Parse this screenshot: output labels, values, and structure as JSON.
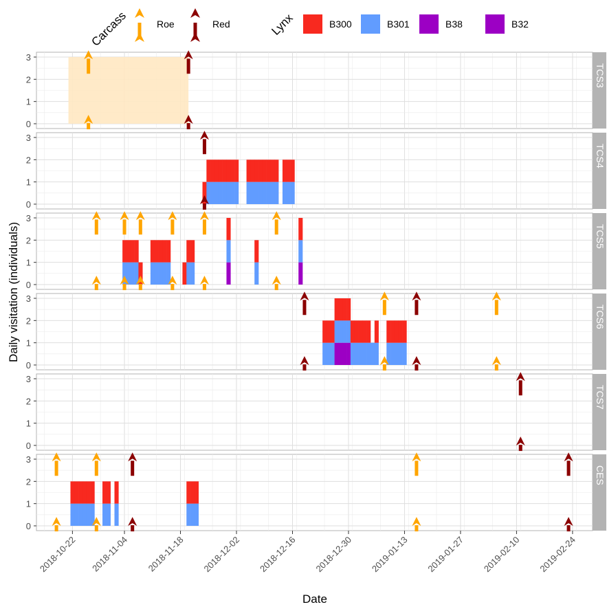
{
  "chart_data": {
    "type": "bar",
    "xlabel": "Date",
    "ylabel": "Daily visitation (individuals)",
    "x_ticks": [
      "2018-10-22",
      "2018-11-04",
      "2018-11-18",
      "2018-12-02",
      "2018-12-16",
      "2018-12-30",
      "2019-01-13",
      "2019-01-27",
      "2019-02-10",
      "2019-02-24"
    ],
    "x_range": [
      "2018-10-13",
      "2019-03-01"
    ],
    "y_ticks": [
      0,
      1,
      2,
      3
    ],
    "ylim": [
      0,
      3
    ],
    "grid": true,
    "legend": {
      "carcass_title": "Carcass",
      "carcass_items": [
        {
          "label": "Roe",
          "color": "#FFA500"
        },
        {
          "label": "Red",
          "color": "#8B0000"
        }
      ],
      "lynx_title": "Lynx",
      "lynx_items": [
        {
          "label": "B300",
          "color": "#F8291F"
        },
        {
          "label": "B301",
          "color": "#619CFF"
        },
        {
          "label": "B38",
          "color": "#9C00C4"
        },
        {
          "label": "B32",
          "color": "#9C00C4"
        }
      ],
      "placement": "top"
    },
    "panels": [
      {
        "name": "TCS3",
        "carcass_periods": [
          {
            "start": "2018-10-21",
            "end": "2018-11-20",
            "color": "#FFE8C2"
          }
        ],
        "carcasses": [
          {
            "date": "2018-10-26",
            "type": "Roe"
          },
          {
            "date": "2018-11-20",
            "type": "Red"
          }
        ],
        "visits": []
      },
      {
        "name": "TCS4",
        "carcass_periods": [],
        "carcasses": [
          {
            "date": "2018-11-24",
            "type": "Red"
          }
        ],
        "visits": [
          {
            "date": "2018-11-24",
            "B300": 1,
            "B301": 0
          },
          {
            "date": "2018-11-25",
            "B300": 1,
            "B301": 1
          },
          {
            "date": "2018-11-26",
            "B300": 1,
            "B301": 1
          },
          {
            "date": "2018-11-27",
            "B300": 1,
            "B301": 1
          },
          {
            "date": "2018-11-28",
            "B300": 1,
            "B301": 1
          },
          {
            "date": "2018-11-29",
            "B300": 1,
            "B301": 1
          },
          {
            "date": "2018-11-30",
            "B300": 1,
            "B301": 1
          },
          {
            "date": "2018-12-01",
            "B300": 1,
            "B301": 1
          },
          {
            "date": "2018-12-02",
            "B300": 1,
            "B301": 1
          },
          {
            "date": "2018-12-05",
            "B300": 1,
            "B301": 1
          },
          {
            "date": "2018-12-06",
            "B300": 1,
            "B301": 1
          },
          {
            "date": "2018-12-07",
            "B300": 1,
            "B301": 1
          },
          {
            "date": "2018-12-08",
            "B300": 1,
            "B301": 1
          },
          {
            "date": "2018-12-09",
            "B300": 1,
            "B301": 1
          },
          {
            "date": "2018-12-10",
            "B300": 1,
            "B301": 1
          },
          {
            "date": "2018-12-11",
            "B300": 1,
            "B301": 1
          },
          {
            "date": "2018-12-12",
            "B300": 1,
            "B301": 1
          },
          {
            "date": "2018-12-14",
            "B300": 1,
            "B301": 1
          },
          {
            "date": "2018-12-15",
            "B300": 1,
            "B301": 1
          },
          {
            "date": "2018-12-16",
            "B300": 1,
            "B301": 1
          }
        ]
      },
      {
        "name": "TCS5",
        "carcass_periods": [],
        "carcasses": [
          {
            "date": "2018-10-28",
            "type": "Roe"
          },
          {
            "date": "2018-11-04",
            "type": "Roe"
          },
          {
            "date": "2018-11-08",
            "type": "Roe"
          },
          {
            "date": "2018-11-16",
            "type": "Roe"
          },
          {
            "date": "2018-11-24",
            "type": "Roe"
          },
          {
            "date": "2018-12-12",
            "type": "Roe"
          }
        ],
        "visits": [
          {
            "date": "2018-11-04",
            "B300": 1,
            "B301": 1
          },
          {
            "date": "2018-11-05",
            "B300": 1,
            "B301": 1
          },
          {
            "date": "2018-11-06",
            "B300": 1,
            "B301": 1
          },
          {
            "date": "2018-11-07",
            "B300": 1,
            "B301": 1
          },
          {
            "date": "2018-11-08",
            "B300": 1,
            "B301": 0
          },
          {
            "date": "2018-11-11",
            "B300": 1,
            "B301": 1
          },
          {
            "date": "2018-11-12",
            "B300": 1,
            "B301": 1
          },
          {
            "date": "2018-11-13",
            "B300": 1,
            "B301": 1
          },
          {
            "date": "2018-11-14",
            "B300": 1,
            "B301": 1
          },
          {
            "date": "2018-11-15",
            "B300": 1,
            "B301": 1
          },
          {
            "date": "2018-11-19",
            "B300": 1,
            "B301": 0
          },
          {
            "date": "2018-11-20",
            "B300": 1,
            "B301": 1
          },
          {
            "date": "2018-11-21",
            "B300": 1,
            "B301": 1
          },
          {
            "date": "2018-11-30",
            "B300": 1,
            "B301": 1,
            "B38": 1
          },
          {
            "date": "2018-12-07",
            "B300": 1,
            "B301": 1
          },
          {
            "date": "2018-12-18",
            "B300": 1,
            "B301": 1,
            "B38": 1
          }
        ]
      },
      {
        "name": "TCS6",
        "carcass_periods": [],
        "carcasses": [
          {
            "date": "2018-12-19",
            "type": "Red"
          },
          {
            "date": "2019-01-08",
            "type": "Roe"
          },
          {
            "date": "2019-01-16",
            "type": "Red"
          },
          {
            "date": "2019-02-05",
            "type": "Roe"
          }
        ],
        "visits": [
          {
            "date": "2018-12-24",
            "B300": 1,
            "B301": 1
          },
          {
            "date": "2018-12-25",
            "B300": 1,
            "B301": 1
          },
          {
            "date": "2018-12-26",
            "B300": 1,
            "B301": 1
          },
          {
            "date": "2018-12-27",
            "B300": 1,
            "B301": 1,
            "B38": 1
          },
          {
            "date": "2018-12-28",
            "B300": 1,
            "B301": 1,
            "B38": 1
          },
          {
            "date": "2018-12-29",
            "B300": 1,
            "B301": 1,
            "B38": 1
          },
          {
            "date": "2018-12-30",
            "B300": 1,
            "B301": 1,
            "B38": 1
          },
          {
            "date": "2018-12-31",
            "B300": 1,
            "B301": 1
          },
          {
            "date": "2019-01-01",
            "B300": 1,
            "B301": 1
          },
          {
            "date": "2019-01-02",
            "B300": 1,
            "B301": 1
          },
          {
            "date": "2019-01-03",
            "B300": 1,
            "B301": 1
          },
          {
            "date": "2019-01-04",
            "B300": 1,
            "B301": 1
          },
          {
            "date": "2019-01-05",
            "B300": 0,
            "B301": 1
          },
          {
            "date": "2019-01-06",
            "B300": 1,
            "B301": 1
          },
          {
            "date": "2019-01-09",
            "B300": 1,
            "B301": 1
          },
          {
            "date": "2019-01-10",
            "B300": 1,
            "B301": 1
          },
          {
            "date": "2019-01-11",
            "B300": 1,
            "B301": 1
          },
          {
            "date": "2019-01-12",
            "B300": 1,
            "B301": 1
          },
          {
            "date": "2019-01-13",
            "B300": 1,
            "B301": 1
          }
        ]
      },
      {
        "name": "TCS7",
        "carcass_periods": [],
        "carcasses": [
          {
            "date": "2019-02-11",
            "type": "Red"
          }
        ],
        "visits": []
      },
      {
        "name": "CES",
        "carcass_periods": [],
        "carcasses": [
          {
            "date": "2018-10-18",
            "type": "Roe"
          },
          {
            "date": "2018-10-28",
            "type": "Roe"
          },
          {
            "date": "2018-11-06",
            "type": "Red"
          },
          {
            "date": "2019-01-16",
            "type": "Roe"
          },
          {
            "date": "2019-02-23",
            "type": "Red"
          }
        ],
        "visits": [
          {
            "date": "2018-10-22",
            "B300": 1,
            "B301": 1
          },
          {
            "date": "2018-10-23",
            "B300": 1,
            "B301": 1
          },
          {
            "date": "2018-10-24",
            "B300": 1,
            "B301": 1
          },
          {
            "date": "2018-10-25",
            "B300": 1,
            "B301": 1
          },
          {
            "date": "2018-10-26",
            "B300": 1,
            "B301": 1
          },
          {
            "date": "2018-10-27",
            "B300": 1,
            "B301": 1
          },
          {
            "date": "2018-10-30",
            "B300": 1,
            "B301": 1
          },
          {
            "date": "2018-10-31",
            "B300": 1,
            "B301": 1
          },
          {
            "date": "2018-11-02",
            "B300": 1,
            "B301": 1
          },
          {
            "date": "2018-11-20",
            "B300": 1,
            "B301": 1
          },
          {
            "date": "2018-11-21",
            "B300": 1,
            "B301": 1
          },
          {
            "date": "2018-11-22",
            "B300": 1,
            "B301": 1
          }
        ]
      }
    ]
  }
}
